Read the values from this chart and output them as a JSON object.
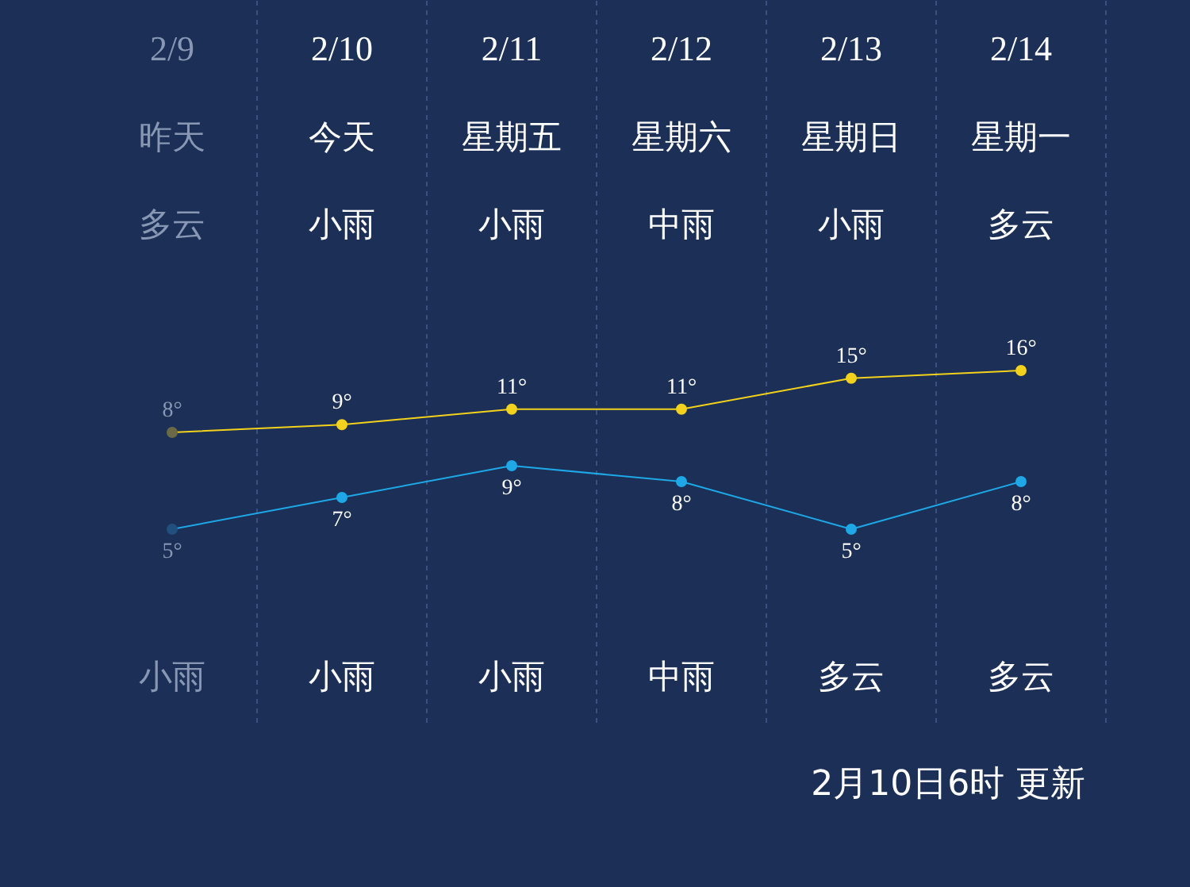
{
  "chart_data": [
    {
      "type": "line",
      "categories": [
        "2/9",
        "2/10",
        "2/11",
        "2/12",
        "2/13",
        "2/14"
      ],
      "series": [
        {
          "color": "#f2d21a",
          "values": [
            8,
            9,
            11,
            11,
            15,
            16
          ],
          "value_labels": [
            "8°",
            "9°",
            "11°",
            "11°",
            "15°",
            "16°"
          ]
        }
      ],
      "marker": "circle",
      "grid": "x",
      "annotations": [
        "昨天",
        "多云",
        "今天",
        "小雨",
        "星期五",
        "小雨",
        "星期六",
        "中雨",
        "星期日",
        "小雨",
        "星期一",
        "多云"
      ]
    },
    {
      "type": "line",
      "categories": [
        "小雨",
        "小雨",
        "小雨",
        "中雨",
        "多云",
        "多云"
      ],
      "series": [
        {
          "color": "#1ea8e6",
          "values": [
            5,
            7,
            9,
            8,
            5,
            8
          ],
          "value_labels": [
            "5°",
            "7°",
            "9°",
            "8°",
            "5°",
            "8°"
          ]
        }
      ],
      "marker": "circle",
      "grid": "x",
      "annotations": [
        "2月10日6时 更新"
      ]
    }
  ]
}
